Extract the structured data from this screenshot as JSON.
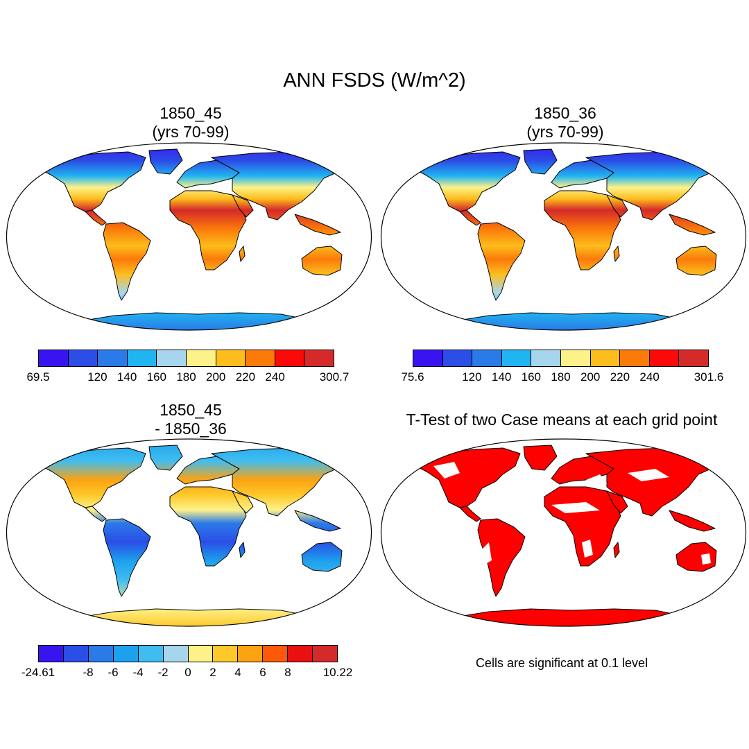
{
  "title": "ANN FSDS (W/m^2)",
  "panels": [
    {
      "id": "p1",
      "title_line1": "1850_45",
      "title_line2": "(yrs 70-99)"
    },
    {
      "id": "p2",
      "title_line1": "1850_36",
      "title_line2": "(yrs 70-99)"
    },
    {
      "id": "p3",
      "title_line1": "1850_45",
      "title_line2": "- 1850_36"
    },
    {
      "id": "p4",
      "title_line1": "T-Test of two Case means at each grid point",
      "title_line2": ""
    }
  ],
  "significance_note": "Cells are significant at 0.1 level",
  "colorbars": {
    "abs": [
      "#3a14f0",
      "#2b4ee6",
      "#2a7ae8",
      "#20b4f0",
      "#a6d6ee",
      "#fdf28a",
      "#fdbd1c",
      "#fc7a0a",
      "#fc0a0a",
      "#d42a2a"
    ],
    "diff": [
      "#3a14f0",
      "#2b4ee6",
      "#2a7ae8",
      "#1da0ee",
      "#40bdf0",
      "#a6d6ee",
      "#fdf28a",
      "#fdc82a",
      "#fca312",
      "#fc5a0a",
      "#e81010",
      "#d42a2a"
    ]
  },
  "map_colors": {
    "ocean": "#ffffff",
    "significant": "#ff0000",
    "land_edge": "#000000"
  },
  "chart_data": [
    {
      "type": "heatmap",
      "title": "1850_45 (yrs 70-99)",
      "field": "FSDS annual mean",
      "units": "W/m^2",
      "projection": "Robinson",
      "colorbar_min": 69.5,
      "colorbar_max": 300.7,
      "colorbar_levels": [
        "69.5",
        "120",
        "140",
        "160",
        "180",
        "200",
        "220",
        "240",
        "300.7"
      ]
    },
    {
      "type": "heatmap",
      "title": "1850_36 (yrs 70-99)",
      "field": "FSDS annual mean",
      "units": "W/m^2",
      "projection": "Robinson",
      "colorbar_min": 75.6,
      "colorbar_max": 301.6,
      "colorbar_levels": [
        "75.6",
        "120",
        "140",
        "160",
        "180",
        "200",
        "220",
        "240",
        "301.6"
      ]
    },
    {
      "type": "heatmap",
      "title": "1850_45 - 1850_36",
      "field": "FSDS difference",
      "units": "W/m^2",
      "projection": "Robinson",
      "colorbar_min": -24.61,
      "colorbar_max": 10.22,
      "colorbar_levels": [
        "-24.61",
        "-8",
        "-6",
        "-4",
        "-2",
        "0",
        "2",
        "4",
        "6",
        "8",
        "10.22"
      ]
    },
    {
      "type": "heatmap",
      "title": "T-Test of two Case means at each grid point",
      "field": "significance mask",
      "significance_level": 0.1
    }
  ]
}
